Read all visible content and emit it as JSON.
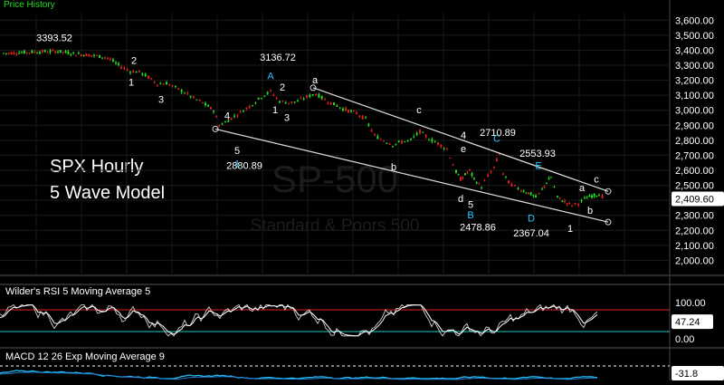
{
  "panels": {
    "price_title": "Price History",
    "rsi_title": "Wilder's RSI 5  Moving Average 5",
    "macd_title": "MACD 12 26  Exp Moving Average 9"
  },
  "watermark": {
    "symbol": "SP-500",
    "name": "Standard & Poors 500"
  },
  "annotation": {
    "line1": "SPX Hourly",
    "line2": "5 Wave Model"
  },
  "colors": {
    "background": "#000000",
    "up": "#22dd22",
    "down": "#e02020",
    "trendline": "#dddddd",
    "wave_blue": "#27c6ff",
    "rsi_upper": "#e02020",
    "rsi_lower": "#20c8c8",
    "axis_text": "#ffffff"
  },
  "chart_data": [
    {
      "type": "candlestick",
      "title": "Price History",
      "ylim": [
        1900,
        3650
      ],
      "y_ticks": [
        "3,600.00",
        "3,500.00",
        "3,400.00",
        "3,300.00",
        "3,200.00",
        "3,100.00",
        "3,000.00",
        "2,900.00",
        "2,800.00",
        "2,700.00",
        "2,600.00",
        "2,500.00",
        "2,400.00",
        "2,300.00",
        "2,200.00",
        "2,100.00",
        "2,000.00"
      ],
      "last_price": "2,409.60",
      "close_path": [
        [
          0,
          3380
        ],
        [
          20,
          3385
        ],
        [
          40,
          3390
        ],
        [
          60,
          3393
        ],
        [
          80,
          3375
        ],
        [
          100,
          3365
        ],
        [
          115,
          3350
        ],
        [
          130,
          3290
        ],
        [
          140,
          3260
        ],
        [
          150,
          3255
        ],
        [
          160,
          3220
        ],
        [
          170,
          3175
        ],
        [
          180,
          3180
        ],
        [
          190,
          3150
        ],
        [
          200,
          3120
        ],
        [
          210,
          3080
        ],
        [
          220,
          3050
        ],
        [
          232,
          3000
        ],
        [
          238,
          2900
        ],
        [
          245,
          2920
        ],
        [
          255,
          2960
        ],
        [
          265,
          3000
        ],
        [
          275,
          3040
        ],
        [
          285,
          3090
        ],
        [
          295,
          3125
        ],
        [
          305,
          3060
        ],
        [
          315,
          3050
        ],
        [
          325,
          3060
        ],
        [
          335,
          3090
        ],
        [
          345,
          3110
        ],
        [
          355,
          3070
        ],
        [
          365,
          3040
        ],
        [
          375,
          3010
        ],
        [
          390,
          2980
        ],
        [
          400,
          2940
        ],
        [
          410,
          2830
        ],
        [
          420,
          2800
        ],
        [
          430,
          2770
        ],
        [
          440,
          2790
        ],
        [
          450,
          2800
        ],
        [
          460,
          2860
        ],
        [
          470,
          2810
        ],
        [
          480,
          2780
        ],
        [
          490,
          2740
        ],
        [
          500,
          2590
        ],
        [
          505,
          2540
        ],
        [
          510,
          2570
        ],
        [
          515,
          2600
        ],
        [
          520,
          2540
        ],
        [
          528,
          2490
        ],
        [
          535,
          2560
        ],
        [
          542,
          2620
        ],
        [
          548,
          2710
        ],
        [
          552,
          2580
        ],
        [
          558,
          2520
        ],
        [
          565,
          2490
        ],
        [
          572,
          2470
        ],
        [
          580,
          2450
        ],
        [
          588,
          2420
        ],
        [
          595,
          2470
        ],
        [
          600,
          2520
        ],
        [
          605,
          2554
        ],
        [
          612,
          2420
        ],
        [
          620,
          2390
        ],
        [
          628,
          2367
        ],
        [
          635,
          2380
        ],
        [
          642,
          2410
        ],
        [
          650,
          2430
        ],
        [
          658,
          2440
        ],
        [
          665,
          2410
        ]
      ],
      "labels": [
        {
          "text": "3393.52",
          "x": 60,
          "y": 3460,
          "color": "white"
        },
        {
          "text": "3136.72",
          "x": 307,
          "y": 3330,
          "color": "white"
        },
        {
          "text": "2880.89",
          "x": 270,
          "y": 2610,
          "color": "white"
        },
        {
          "text": "2710.89",
          "x": 550,
          "y": 2830,
          "color": "white"
        },
        {
          "text": "2553.93",
          "x": 594,
          "y": 2690,
          "color": "white"
        },
        {
          "text": "2478.86",
          "x": 528,
          "y": 2200,
          "color": "white"
        },
        {
          "text": "2367.04",
          "x": 587,
          "y": 2160,
          "color": "white"
        },
        {
          "text": "2",
          "x": 148,
          "y": 3310,
          "color": "white"
        },
        {
          "text": "1",
          "x": 145,
          "y": 3165,
          "color": "white"
        },
        {
          "text": "3",
          "x": 178,
          "y": 3050,
          "color": "white"
        },
        {
          "text": "4",
          "x": 251,
          "y": 2940,
          "color": "white"
        },
        {
          "text": "5",
          "x": 262,
          "y": 2710,
          "color": "white"
        },
        {
          "text": "1",
          "x": 262,
          "y": 2620,
          "color": "blue"
        },
        {
          "text": "A",
          "x": 299,
          "y": 3205,
          "color": "blue"
        },
        {
          "text": "2",
          "x": 312,
          "y": 3130,
          "color": "white"
        },
        {
          "text": "1",
          "x": 304,
          "y": 2980,
          "color": "white"
        },
        {
          "text": "3",
          "x": 317,
          "y": 2930,
          "color": "white"
        },
        {
          "text": "a",
          "x": 348,
          "y": 3180,
          "color": "white"
        },
        {
          "text": "c",
          "x": 463,
          "y": 2980,
          "color": "white"
        },
        {
          "text": "4",
          "x": 512,
          "y": 2810,
          "color": "white"
        },
        {
          "text": "e",
          "x": 512,
          "y": 2720,
          "color": "white"
        },
        {
          "text": "C",
          "x": 549,
          "y": 2790,
          "color": "blue"
        },
        {
          "text": "E",
          "x": 595,
          "y": 2610,
          "color": "blue"
        },
        {
          "text": "b",
          "x": 435,
          "y": 2600,
          "color": "white"
        },
        {
          "text": "d",
          "x": 509,
          "y": 2390,
          "color": "white"
        },
        {
          "text": "5",
          "x": 520,
          "y": 2350,
          "color": "white"
        },
        {
          "text": "B",
          "x": 520,
          "y": 2280,
          "color": "blue"
        },
        {
          "text": "D",
          "x": 587,
          "y": 2260,
          "color": "blue"
        },
        {
          "text": "1",
          "x": 630,
          "y": 2190,
          "color": "white"
        },
        {
          "text": "a",
          "x": 643,
          "y": 2460,
          "color": "white"
        },
        {
          "text": "b",
          "x": 652,
          "y": 2310,
          "color": "white"
        },
        {
          "text": "c",
          "x": 659,
          "y": 2520,
          "color": "white"
        }
      ],
      "trendlines": [
        [
          [
            346,
            3150
          ],
          [
            672,
            2460
          ]
        ],
        [
          [
            238,
            2875
          ],
          [
            672,
            2255
          ]
        ]
      ]
    },
    {
      "type": "line",
      "title": "Wilder's RSI 5  Moving Average 5",
      "ylim": [
        0,
        100
      ],
      "y_ticks": [
        "100.00",
        "0.00"
      ],
      "upper_band": 80,
      "lower_band": 20,
      "last_value": "47.24"
    },
    {
      "type": "line",
      "title": "MACD 12 26  Exp Moving Average 9",
      "last_value": "-31.8"
    }
  ]
}
